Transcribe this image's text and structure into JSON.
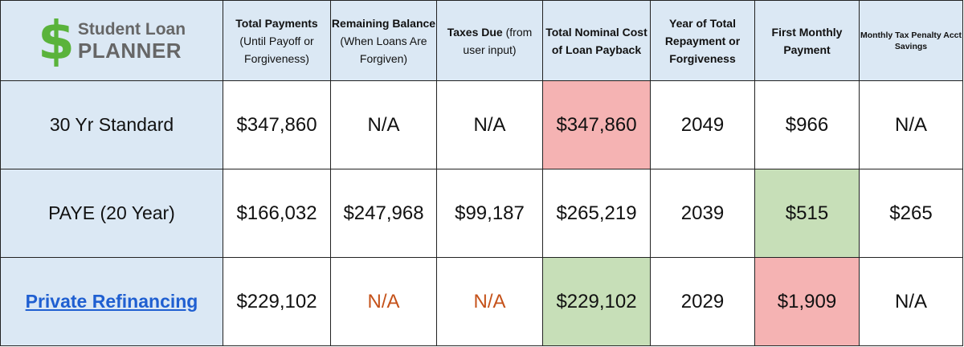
{
  "logo": {
    "symbol": "$",
    "line1": "Student Loan",
    "line2": "PLANNER"
  },
  "headers": [
    {
      "bold": "Total Payments",
      "rest": "(Until Payoff or Forgiveness)"
    },
    {
      "bold": "Remaining Balance",
      "rest": "(When Loans Are Forgiven)"
    },
    {
      "bold": "Taxes Due",
      "rest": "(from user input)"
    },
    {
      "bold": "Total Nominal Cost of Loan Payback",
      "rest": ""
    },
    {
      "bold": "Year of Total Repayment or Forgiveness",
      "rest": ""
    },
    {
      "bold": "First Monthly Payment",
      "rest": ""
    },
    {
      "bold": "Monthly Tax Penalty Acct Savings",
      "rest": ""
    }
  ],
  "rows": [
    {
      "label": "30 Yr Standard",
      "values": [
        "$347,860",
        "N/A",
        "N/A",
        "$347,860",
        "2049",
        "$966",
        "N/A"
      ]
    },
    {
      "label": "PAYE  (20 Year)",
      "values": [
        "$166,032",
        "$247,968",
        "$99,187",
        "$265,219",
        "2039",
        "$515",
        "$265"
      ]
    },
    {
      "label": "Private Refinancing",
      "values": [
        "$229,102",
        "N/A",
        "N/A",
        "$229,102",
        "2029",
        "$1,909",
        "N/A"
      ]
    }
  ],
  "highlight_colors": {
    "red": "#f5b3b3",
    "green": "#c7dfb8",
    "orange_text": "#c5521a",
    "link": "#1f5fd1",
    "header_bg": "#dbe8f4"
  }
}
